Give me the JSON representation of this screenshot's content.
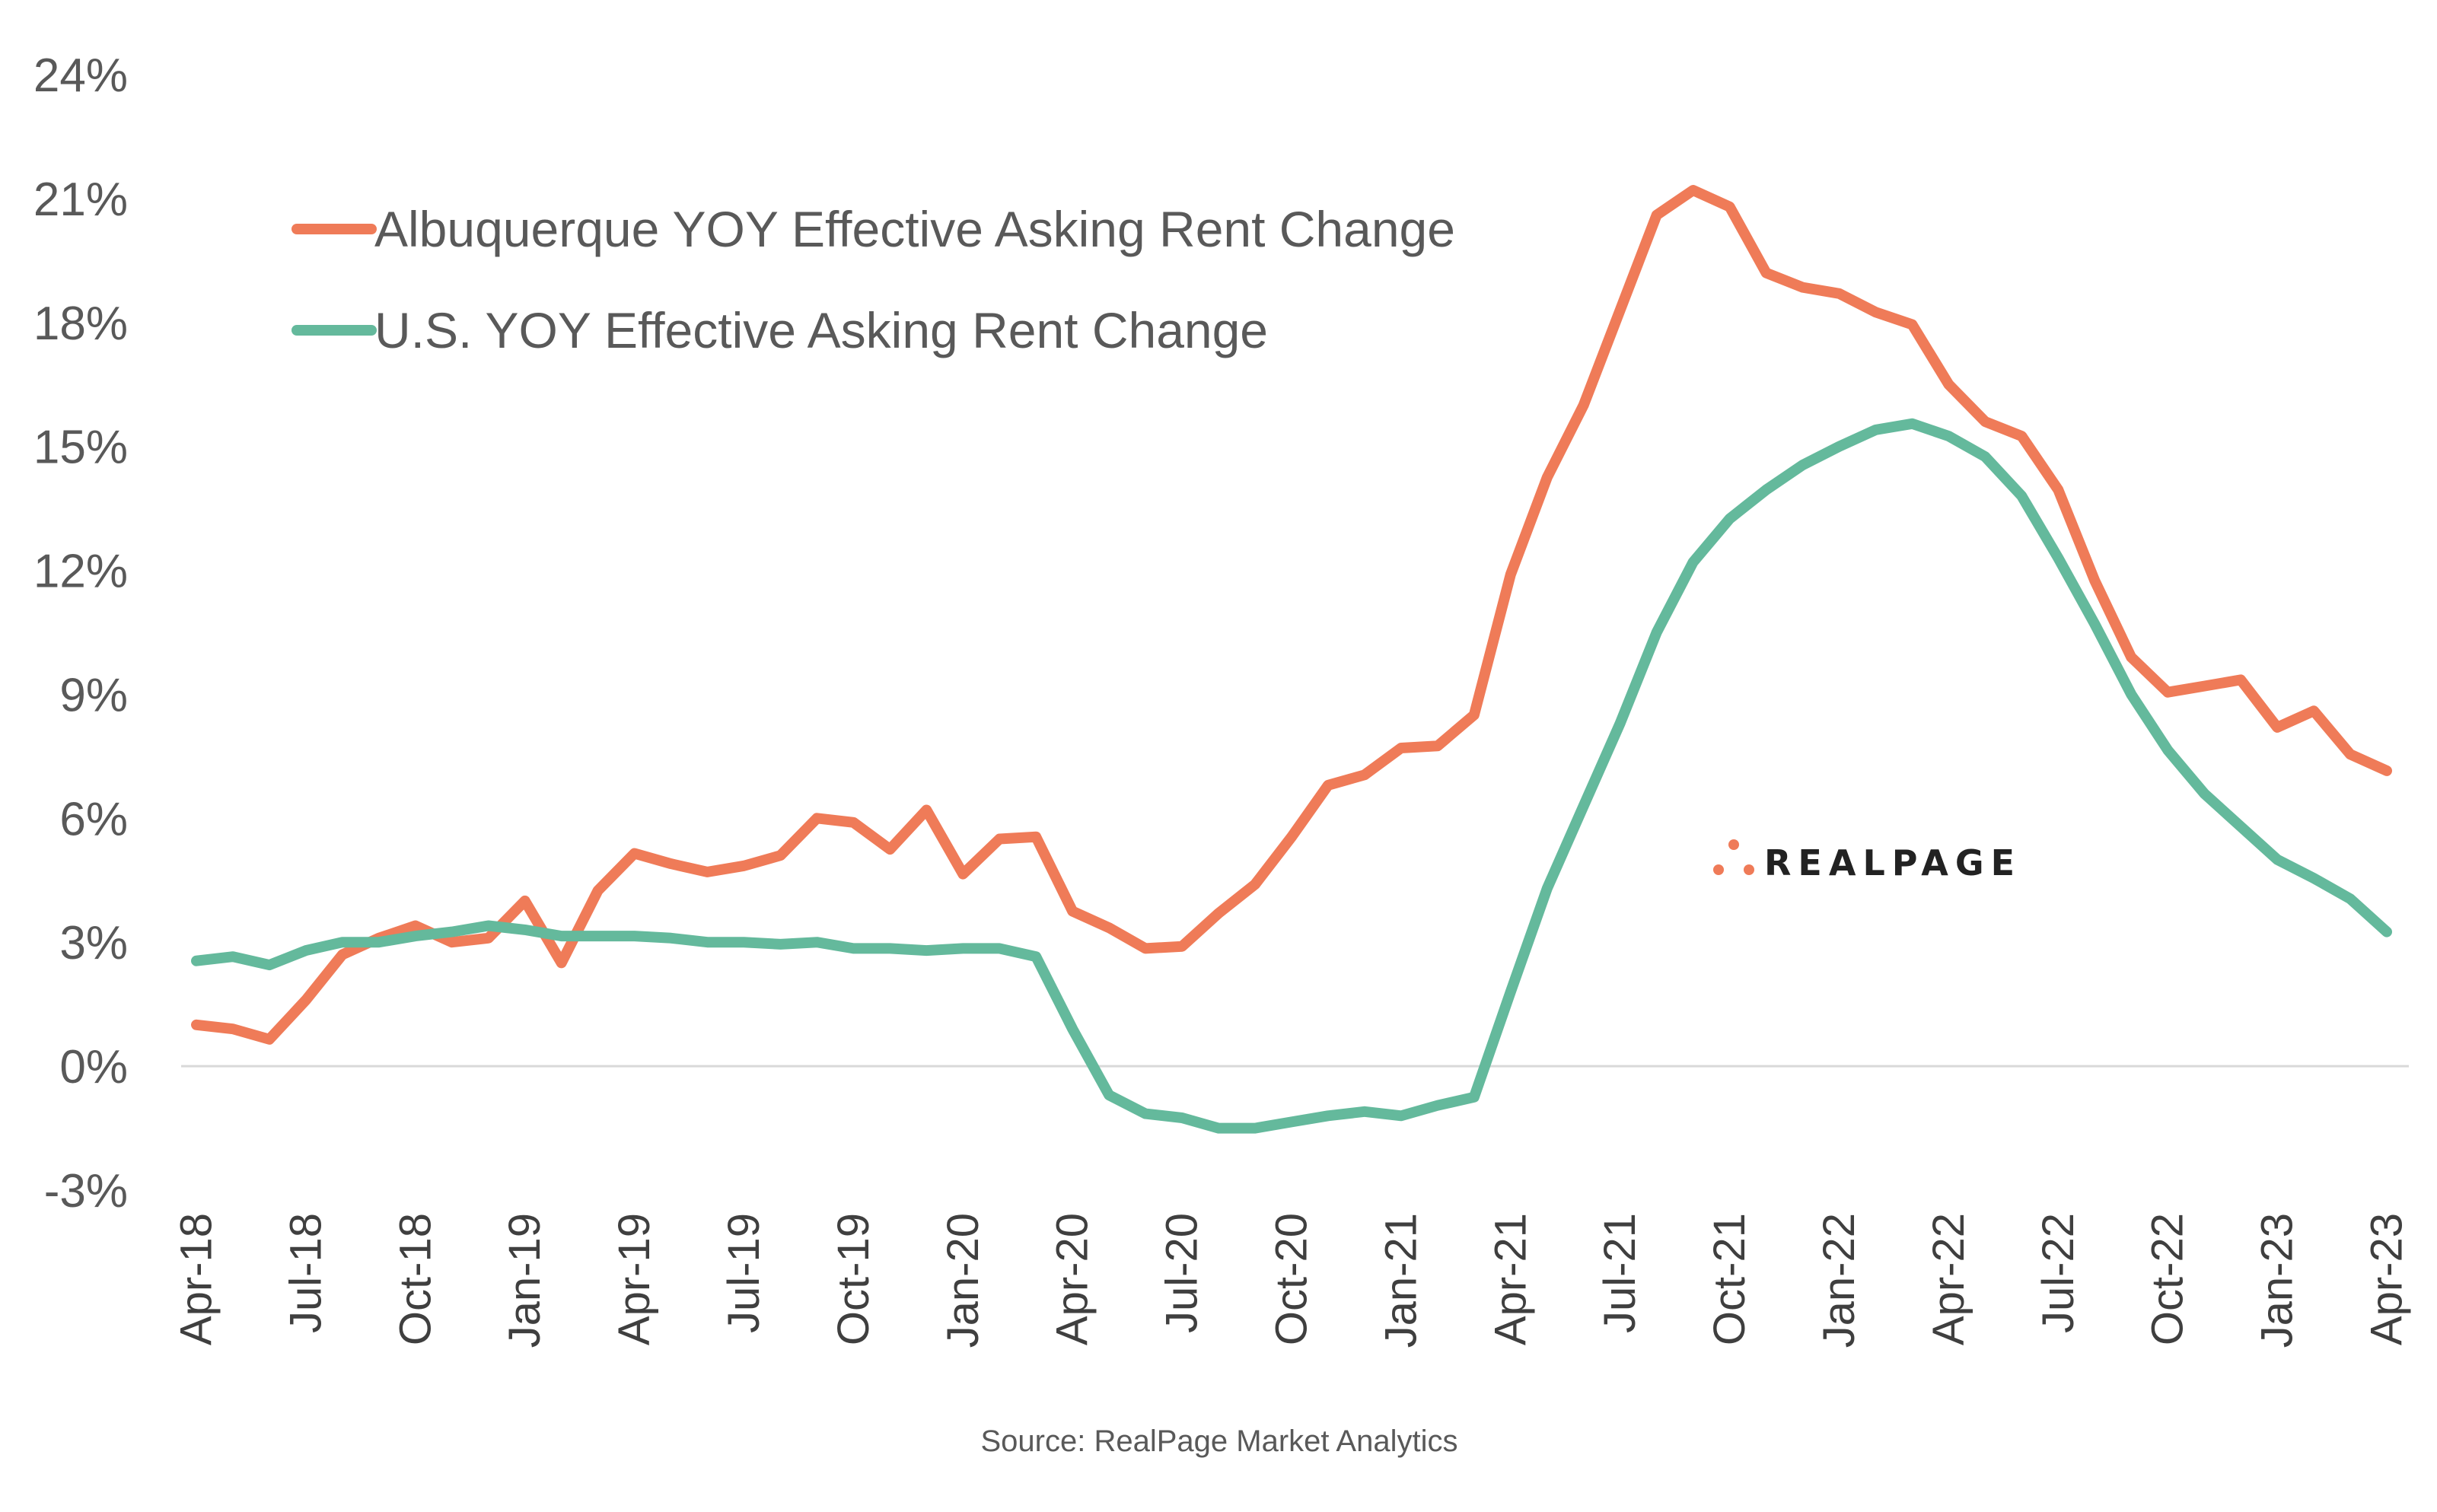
{
  "chart_data": {
    "type": "line",
    "title": "",
    "xlabel": "",
    "ylabel": "",
    "ylim": [
      -3,
      24
    ],
    "yticks": [
      "-3%",
      "0%",
      "3%",
      "6%",
      "9%",
      "12%",
      "15%",
      "18%",
      "21%",
      "24%"
    ],
    "ytick_values": [
      -3,
      0,
      3,
      6,
      9,
      12,
      15,
      18,
      21,
      24
    ],
    "x": [
      "Apr-18",
      "May-18",
      "Jun-18",
      "Jul-18",
      "Aug-18",
      "Sep-18",
      "Oct-18",
      "Nov-18",
      "Dec-18",
      "Jan-19",
      "Feb-19",
      "Mar-19",
      "Apr-19",
      "May-19",
      "Jun-19",
      "Jul-19",
      "Aug-19",
      "Sep-19",
      "Oct-19",
      "Nov-19",
      "Dec-19",
      "Jan-20",
      "Feb-20",
      "Mar-20",
      "Apr-20",
      "May-20",
      "Jun-20",
      "Jul-20",
      "Aug-20",
      "Sep-20",
      "Oct-20",
      "Nov-20",
      "Dec-20",
      "Jan-21",
      "Feb-21",
      "Mar-21",
      "Apr-21",
      "May-21",
      "Jun-21",
      "Jul-21",
      "Aug-21",
      "Sep-21",
      "Oct-21",
      "Nov-21",
      "Dec-21",
      "Jan-22",
      "Feb-22",
      "Mar-22",
      "Apr-22",
      "May-22",
      "Jun-22",
      "Jul-22",
      "Aug-22",
      "Sep-22",
      "Oct-22",
      "Nov-22",
      "Dec-22",
      "Jan-23",
      "Feb-23",
      "Mar-23",
      "Apr-23"
    ],
    "xtick_labels": [
      "Apr-18",
      "Jul-18",
      "Oct-18",
      "Jan-19",
      "Apr-19",
      "Jul-19",
      "Oct-19",
      "Jan-20",
      "Apr-20",
      "Jul-20",
      "Oct-20",
      "Jan-21",
      "Apr-21",
      "Jul-21",
      "Oct-21",
      "Jan-22",
      "Apr-22",
      "Jul-22",
      "Oct-22",
      "Jan-23",
      "Apr-23"
    ],
    "series": [
      {
        "name": "Albuquerque YOY Effective Asking Rent Change",
        "color": "#ef7b58",
        "values": [
          1.0,
          0.9,
          0.65,
          1.6,
          2.7,
          3.1,
          3.4,
          3.0,
          3.1,
          4.0,
          2.5,
          4.25,
          5.15,
          4.9,
          4.7,
          4.85,
          5.1,
          6.0,
          5.9,
          5.25,
          6.2,
          4.65,
          5.5,
          5.55,
          3.75,
          3.35,
          2.85,
          2.9,
          3.7,
          4.4,
          5.55,
          6.8,
          7.05,
          7.7,
          7.75,
          8.5,
          11.9,
          14.25,
          16.0,
          18.3,
          20.6,
          21.2,
          20.8,
          19.2,
          18.85,
          18.7,
          18.25,
          17.95,
          16.5,
          15.6,
          15.25,
          13.95,
          11.75,
          9.9,
          9.05,
          9.2,
          9.35,
          8.2,
          8.6,
          7.55,
          7.15
        ]
      },
      {
        "name": "U.S. YOY Effective Asking Rent Change",
        "color": "#64b99c",
        "values": [
          2.55,
          2.65,
          2.45,
          2.8,
          3.0,
          3.0,
          3.15,
          3.25,
          3.4,
          3.3,
          3.15,
          3.15,
          3.15,
          3.1,
          3.0,
          3.0,
          2.95,
          3.0,
          2.85,
          2.85,
          2.8,
          2.85,
          2.85,
          2.65,
          0.9,
          -0.7,
          -1.15,
          -1.25,
          -1.5,
          -1.5,
          -1.35,
          -1.2,
          -1.1,
          -1.2,
          -0.95,
          -0.75,
          1.8,
          4.3,
          6.3,
          8.3,
          10.5,
          12.2,
          13.25,
          13.95,
          14.55,
          15.0,
          15.4,
          15.55,
          15.25,
          14.75,
          13.8,
          12.3,
          10.7,
          9.0,
          7.65,
          6.6,
          5.8,
          5.0,
          4.55,
          4.05,
          3.25
        ]
      }
    ],
    "legend": [
      "Albuquerque YOY Effective Asking Rent Change",
      "U.S. YOY Effective Asking Rent Change"
    ],
    "legend_position": "top-left",
    "grid": false
  },
  "source_note": "Source: RealPage Market Analytics",
  "brand": {
    "name": "REALPAGE",
    "accent_color": "#ef7b58"
  }
}
